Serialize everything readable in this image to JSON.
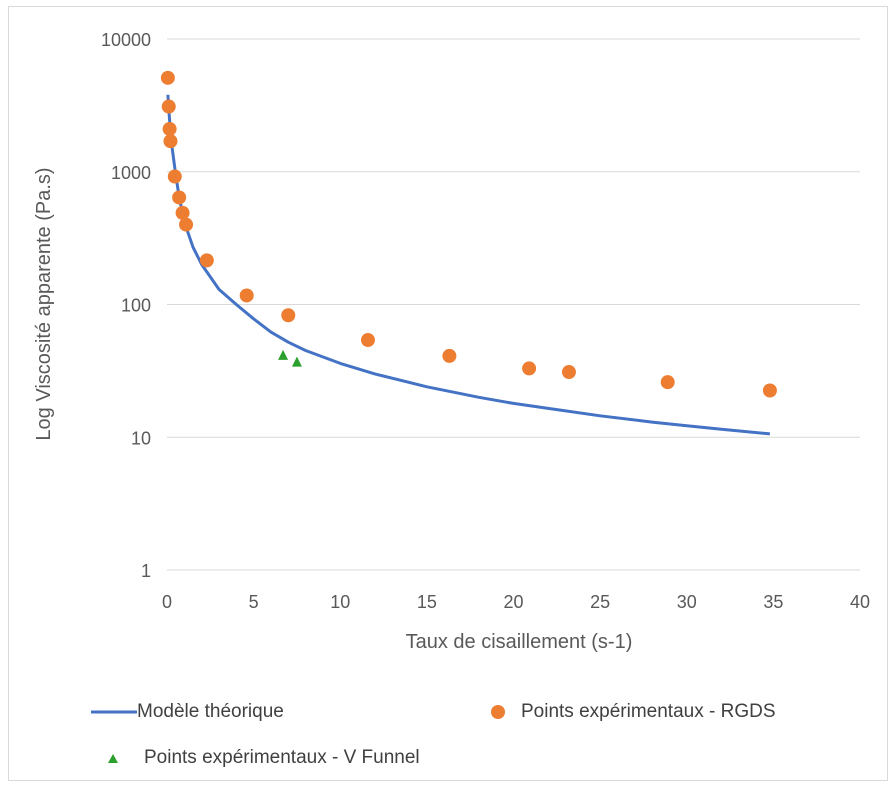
{
  "chart_data": {
    "type": "scatter",
    "title": "",
    "xlabel": "Taux de cisaillement (s-1)",
    "ylabel": "Log Viscosité apparente (Pa.s)",
    "xlim": [
      0,
      40
    ],
    "ylim": [
      1,
      10000
    ],
    "yscale": "log",
    "x_ticks": [
      0,
      5,
      10,
      15,
      20,
      25,
      30,
      35,
      40
    ],
    "y_ticks": [
      1,
      10,
      100,
      1000,
      10000
    ],
    "grid": "horizontal",
    "legend_position": "bottom",
    "colors": {
      "model": "#4472c4",
      "rgds": "#ed7d31",
      "vfunnel": "#2ca02c"
    },
    "series": [
      {
        "name": "Modèle théorique",
        "kind": "line",
        "x": [
          0.05,
          0.1,
          0.2,
          0.3,
          0.5,
          0.7,
          1.0,
          1.5,
          2.0,
          3.0,
          4.0,
          5.0,
          6.0,
          7.0,
          8.0,
          10.0,
          12.0,
          15.0,
          18.0,
          20.0,
          22.0,
          25.0,
          28.0,
          30.0,
          32.0,
          34.8
        ],
        "y": [
          3800,
          3000,
          2000,
          1500,
          950,
          650,
          420,
          270,
          200,
          130,
          100,
          78,
          62,
          52,
          45,
          36,
          30,
          24,
          20,
          18,
          16.5,
          14.5,
          13,
          12.2,
          11.5,
          10.6
        ]
      },
      {
        "name": "Points expérimentaux - RGDS",
        "kind": "scatter",
        "marker": "circle",
        "x": [
          0.05,
          0.1,
          0.15,
          0.2,
          0.45,
          0.7,
          0.9,
          1.1,
          2.3,
          4.6,
          7.0,
          11.6,
          16.3,
          20.9,
          23.2,
          28.9,
          34.8
        ],
        "y": [
          5100,
          3100,
          2100,
          1700,
          920,
          640,
          490,
          400,
          215,
          117,
          83,
          54,
          41,
          33,
          31,
          26,
          22.5
        ]
      },
      {
        "name": "Points expérimentaux - V Funnel",
        "kind": "scatter",
        "marker": "triangle",
        "x": [
          6.7,
          7.5
        ],
        "y": [
          41,
          36.5
        ]
      }
    ]
  }
}
